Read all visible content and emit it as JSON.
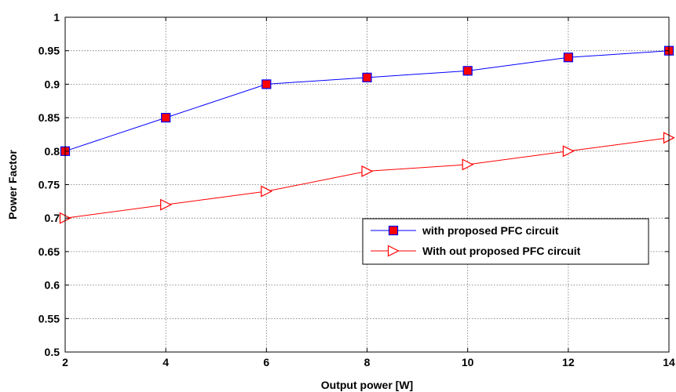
{
  "chart_data": {
    "type": "line",
    "title": "",
    "xlabel": "Output power [W]",
    "ylabel": "Power Factor",
    "xlim": [
      2,
      14
    ],
    "ylim": [
      0.5,
      1
    ],
    "xticks": [
      2,
      4,
      6,
      8,
      10,
      12,
      14
    ],
    "yticks": [
      0.5,
      0.55,
      0.6,
      0.65,
      0.7,
      0.75,
      0.8,
      0.85,
      0.9,
      0.95,
      1
    ],
    "xtick_labels": [
      "2",
      "4",
      "6",
      "8",
      "10",
      "12",
      "14"
    ],
    "ytick_labels": [
      "0.5",
      "0.55",
      "0.6",
      "0.65",
      "0.7",
      "0.75",
      "0.8",
      "0.85",
      "0.9",
      "0.95",
      "1"
    ],
    "grid": true,
    "legend_position": "center-right",
    "x": [
      2,
      4,
      6,
      8,
      10,
      12,
      14
    ],
    "series": [
      {
        "name": "with proposed PFC circuit",
        "values": [
          0.8,
          0.85,
          0.9,
          0.91,
          0.92,
          0.94,
          0.95
        ],
        "line_color": "#0000ff",
        "marker": "square",
        "marker_fill": "#ff0000",
        "marker_edge": "#0000ff"
      },
      {
        "name": "With out proposed PFC circuit",
        "values": [
          0.7,
          0.72,
          0.74,
          0.77,
          0.78,
          0.8,
          0.82
        ],
        "line_color": "#ff0000",
        "marker": "triangle-right",
        "marker_fill": "none",
        "marker_edge": "#ff0000"
      }
    ]
  }
}
